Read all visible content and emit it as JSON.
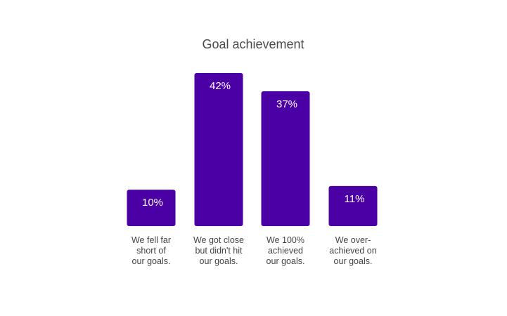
{
  "chart_data": {
    "type": "bar",
    "title": "Goal achievement",
    "categories": [
      [
        "We fell far",
        "short of",
        "our goals."
      ],
      [
        "We got close",
        "but didn't hit",
        "our goals."
      ],
      [
        "We 100%",
        "achieved",
        "our goals."
      ],
      [
        "We over-",
        "achieved on",
        "our goals."
      ]
    ],
    "values": [
      10,
      42,
      37,
      11
    ],
    "data_labels": [
      "10%",
      "42%",
      "37%",
      "11%"
    ],
    "unit": "%",
    "ylim": [
      0,
      42
    ],
    "grid": false,
    "legend": "none",
    "colors": {
      "bar": "#4B00A6",
      "title": "#4a4a4a",
      "category_text": "#444444",
      "data_label": "#ffffff"
    }
  }
}
